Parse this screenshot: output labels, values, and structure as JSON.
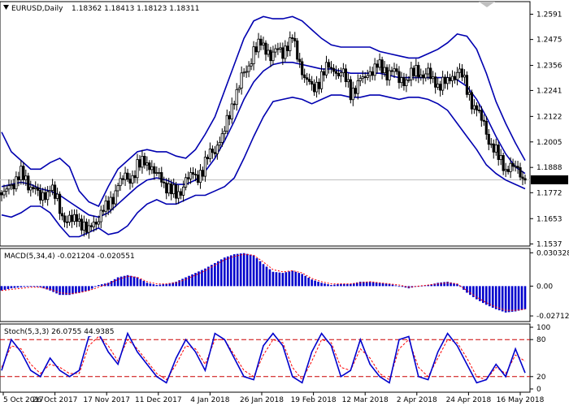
{
  "header": {
    "symbol": "EURUSD,Daily",
    "ohlc": "1.18362 1.18413 1.18123 1.18311"
  },
  "colors": {
    "candle": "#000000",
    "bands": "#0000b0",
    "macd_hist": "#0000cc",
    "macd_signal": "#ff0000",
    "stoch_main": "#0000cc",
    "stoch_signal": "#ff0000",
    "stoch_levels": "#cc0000",
    "price_line": "#c0c0c0",
    "price_tag_bg": "#000000",
    "price_tag_text": "#ffffff"
  },
  "chart_data": [
    {
      "type": "candlestick",
      "title": "EURUSD,Daily",
      "ylim": [
        1.1531,
        1.2645
      ],
      "y_ticks": [
        "1.2591",
        "1.2475",
        "1.2356",
        "1.2241",
        "1.2122",
        "1.2005",
        "1.1888",
        "1.1772",
        "1.1653",
        "1.1537"
      ],
      "current_price": "1.18311",
      "x_ticks": [
        "5 Oct 2017",
        "26 Oct 2017",
        "17 Nov 2017",
        "11 Dec 2017",
        "4 Jan 2018",
        "26 Jan 2018",
        "19 Feb 2018",
        "12 Mar 2018",
        "2 Apr 2018",
        "24 Apr 2018",
        "16 May 2018"
      ],
      "close_path": [
        1.174,
        1.181,
        1.186,
        1.18,
        1.176,
        1.179,
        1.17,
        1.163,
        1.165,
        1.16,
        1.166,
        1.172,
        1.18,
        1.184,
        1.188,
        1.192,
        1.186,
        1.18,
        1.176,
        1.182,
        1.185,
        1.19,
        1.198,
        1.206,
        1.22,
        1.232,
        1.241,
        1.246,
        1.24,
        1.243,
        1.248,
        1.232,
        1.225,
        1.23,
        1.236,
        1.232,
        1.224,
        1.228,
        1.232,
        1.236,
        1.232,
        1.231,
        1.229,
        1.233,
        1.231,
        1.226,
        1.229,
        1.233,
        1.226,
        1.214,
        1.205,
        1.195,
        1.188,
        1.19,
        1.183
      ],
      "bands_upper": [
        1.205,
        1.196,
        1.192,
        1.188,
        1.188,
        1.191,
        1.193,
        1.189,
        1.178,
        1.173,
        1.171,
        1.18,
        1.188,
        1.192,
        1.196,
        1.197,
        1.196,
        1.196,
        1.194,
        1.193,
        1.197,
        1.204,
        1.212,
        1.224,
        1.236,
        1.248,
        1.256,
        1.258,
        1.257,
        1.257,
        1.258,
        1.256,
        1.252,
        1.248,
        1.245,
        1.244,
        1.244,
        1.244,
        1.244,
        1.242,
        1.241,
        1.24,
        1.239,
        1.239,
        1.241,
        1.243,
        1.246,
        1.25,
        1.249,
        1.243,
        1.232,
        1.219,
        1.209,
        1.2,
        1.192
      ],
      "bands_middle": [
        1.18,
        1.181,
        1.182,
        1.181,
        1.179,
        1.178,
        1.176,
        1.173,
        1.17,
        1.167,
        1.166,
        1.168,
        1.172,
        1.176,
        1.18,
        1.183,
        1.184,
        1.183,
        1.181,
        1.181,
        1.183,
        1.187,
        1.193,
        1.201,
        1.21,
        1.22,
        1.228,
        1.233,
        1.236,
        1.237,
        1.237,
        1.236,
        1.235,
        1.234,
        1.234,
        1.233,
        1.232,
        1.232,
        1.232,
        1.232,
        1.231,
        1.23,
        1.23,
        1.23,
        1.23,
        1.23,
        1.23,
        1.229,
        1.226,
        1.22,
        1.212,
        1.203,
        1.195,
        1.189,
        1.186
      ],
      "bands_lower": [
        1.167,
        1.166,
        1.168,
        1.171,
        1.171,
        1.168,
        1.162,
        1.157,
        1.157,
        1.159,
        1.161,
        1.158,
        1.159,
        1.162,
        1.168,
        1.172,
        1.174,
        1.172,
        1.172,
        1.174,
        1.176,
        1.176,
        1.178,
        1.18,
        1.184,
        1.193,
        1.203,
        1.212,
        1.219,
        1.22,
        1.221,
        1.22,
        1.218,
        1.22,
        1.222,
        1.222,
        1.221,
        1.221,
        1.222,
        1.222,
        1.221,
        1.22,
        1.221,
        1.221,
        1.22,
        1.218,
        1.215,
        1.209,
        1.203,
        1.197,
        1.19,
        1.186,
        1.183,
        1.181,
        1.179
      ]
    },
    {
      "type": "bar",
      "title": "MACD(5,34,4) -0.021204 -0.020551",
      "ylim": [
        -0.0315,
        0.0335
      ],
      "y_ticks": [
        "0.030328",
        "0.00",
        "-0.027121"
      ],
      "histogram": [
        -0.004,
        -0.002,
        -0.001,
        0.0,
        -0.001,
        -0.004,
        -0.008,
        -0.008,
        -0.006,
        -0.004,
        0.001,
        0.003,
        0.008,
        0.01,
        0.008,
        0.003,
        0.001,
        0.002,
        0.004,
        0.008,
        0.012,
        0.016,
        0.021,
        0.026,
        0.029,
        0.03,
        0.028,
        0.02,
        0.013,
        0.012,
        0.014,
        0.011,
        0.006,
        0.003,
        0.001,
        0.002,
        0.002,
        0.004,
        0.004,
        0.003,
        0.002,
        0.0,
        -0.002,
        0.0,
        0.001,
        0.003,
        0.004,
        0.002,
        -0.006,
        -0.012,
        -0.017,
        -0.021,
        -0.024,
        -0.023,
        -0.021
      ],
      "signal": [
        -0.004,
        -0.003,
        -0.002,
        -0.001,
        -0.001,
        -0.003,
        -0.006,
        -0.007,
        -0.006,
        -0.004,
        -0.001,
        0.002,
        0.006,
        0.009,
        0.008,
        0.004,
        0.002,
        0.002,
        0.003,
        0.006,
        0.01,
        0.014,
        0.019,
        0.024,
        0.027,
        0.029,
        0.028,
        0.022,
        0.015,
        0.013,
        0.014,
        0.012,
        0.007,
        0.004,
        0.002,
        0.002,
        0.002,
        0.003,
        0.004,
        0.003,
        0.002,
        0.001,
        -0.001,
        0.0,
        0.001,
        0.002,
        0.003,
        0.002,
        -0.004,
        -0.01,
        -0.015,
        -0.019,
        -0.022,
        -0.022,
        -0.021
      ]
    },
    {
      "type": "line",
      "title": "Stoch(5,3,3) 26.0755 44.9385",
      "ylim": [
        0,
        100
      ],
      "y_ticks": [
        "100",
        "80",
        "20",
        "0"
      ],
      "levels": [
        80,
        20
      ],
      "main": [
        30,
        80,
        60,
        30,
        20,
        50,
        30,
        20,
        30,
        85,
        90,
        60,
        40,
        90,
        60,
        40,
        20,
        10,
        50,
        80,
        60,
        30,
        90,
        80,
        50,
        20,
        15,
        70,
        90,
        70,
        20,
        10,
        60,
        90,
        70,
        20,
        30,
        80,
        40,
        20,
        10,
        80,
        85,
        20,
        15,
        60,
        90,
        70,
        40,
        10,
        15,
        40,
        20,
        65,
        26
      ],
      "signal": [
        35,
        70,
        65,
        40,
        25,
        40,
        35,
        25,
        25,
        70,
        85,
        70,
        45,
        80,
        65,
        45,
        25,
        15,
        40,
        70,
        65,
        40,
        80,
        80,
        55,
        30,
        20,
        55,
        80,
        75,
        35,
        15,
        45,
        80,
        75,
        35,
        30,
        65,
        50,
        25,
        15,
        65,
        80,
        35,
        20,
        50,
        80,
        75,
        50,
        20,
        15,
        35,
        25,
        55,
        45
      ]
    }
  ]
}
